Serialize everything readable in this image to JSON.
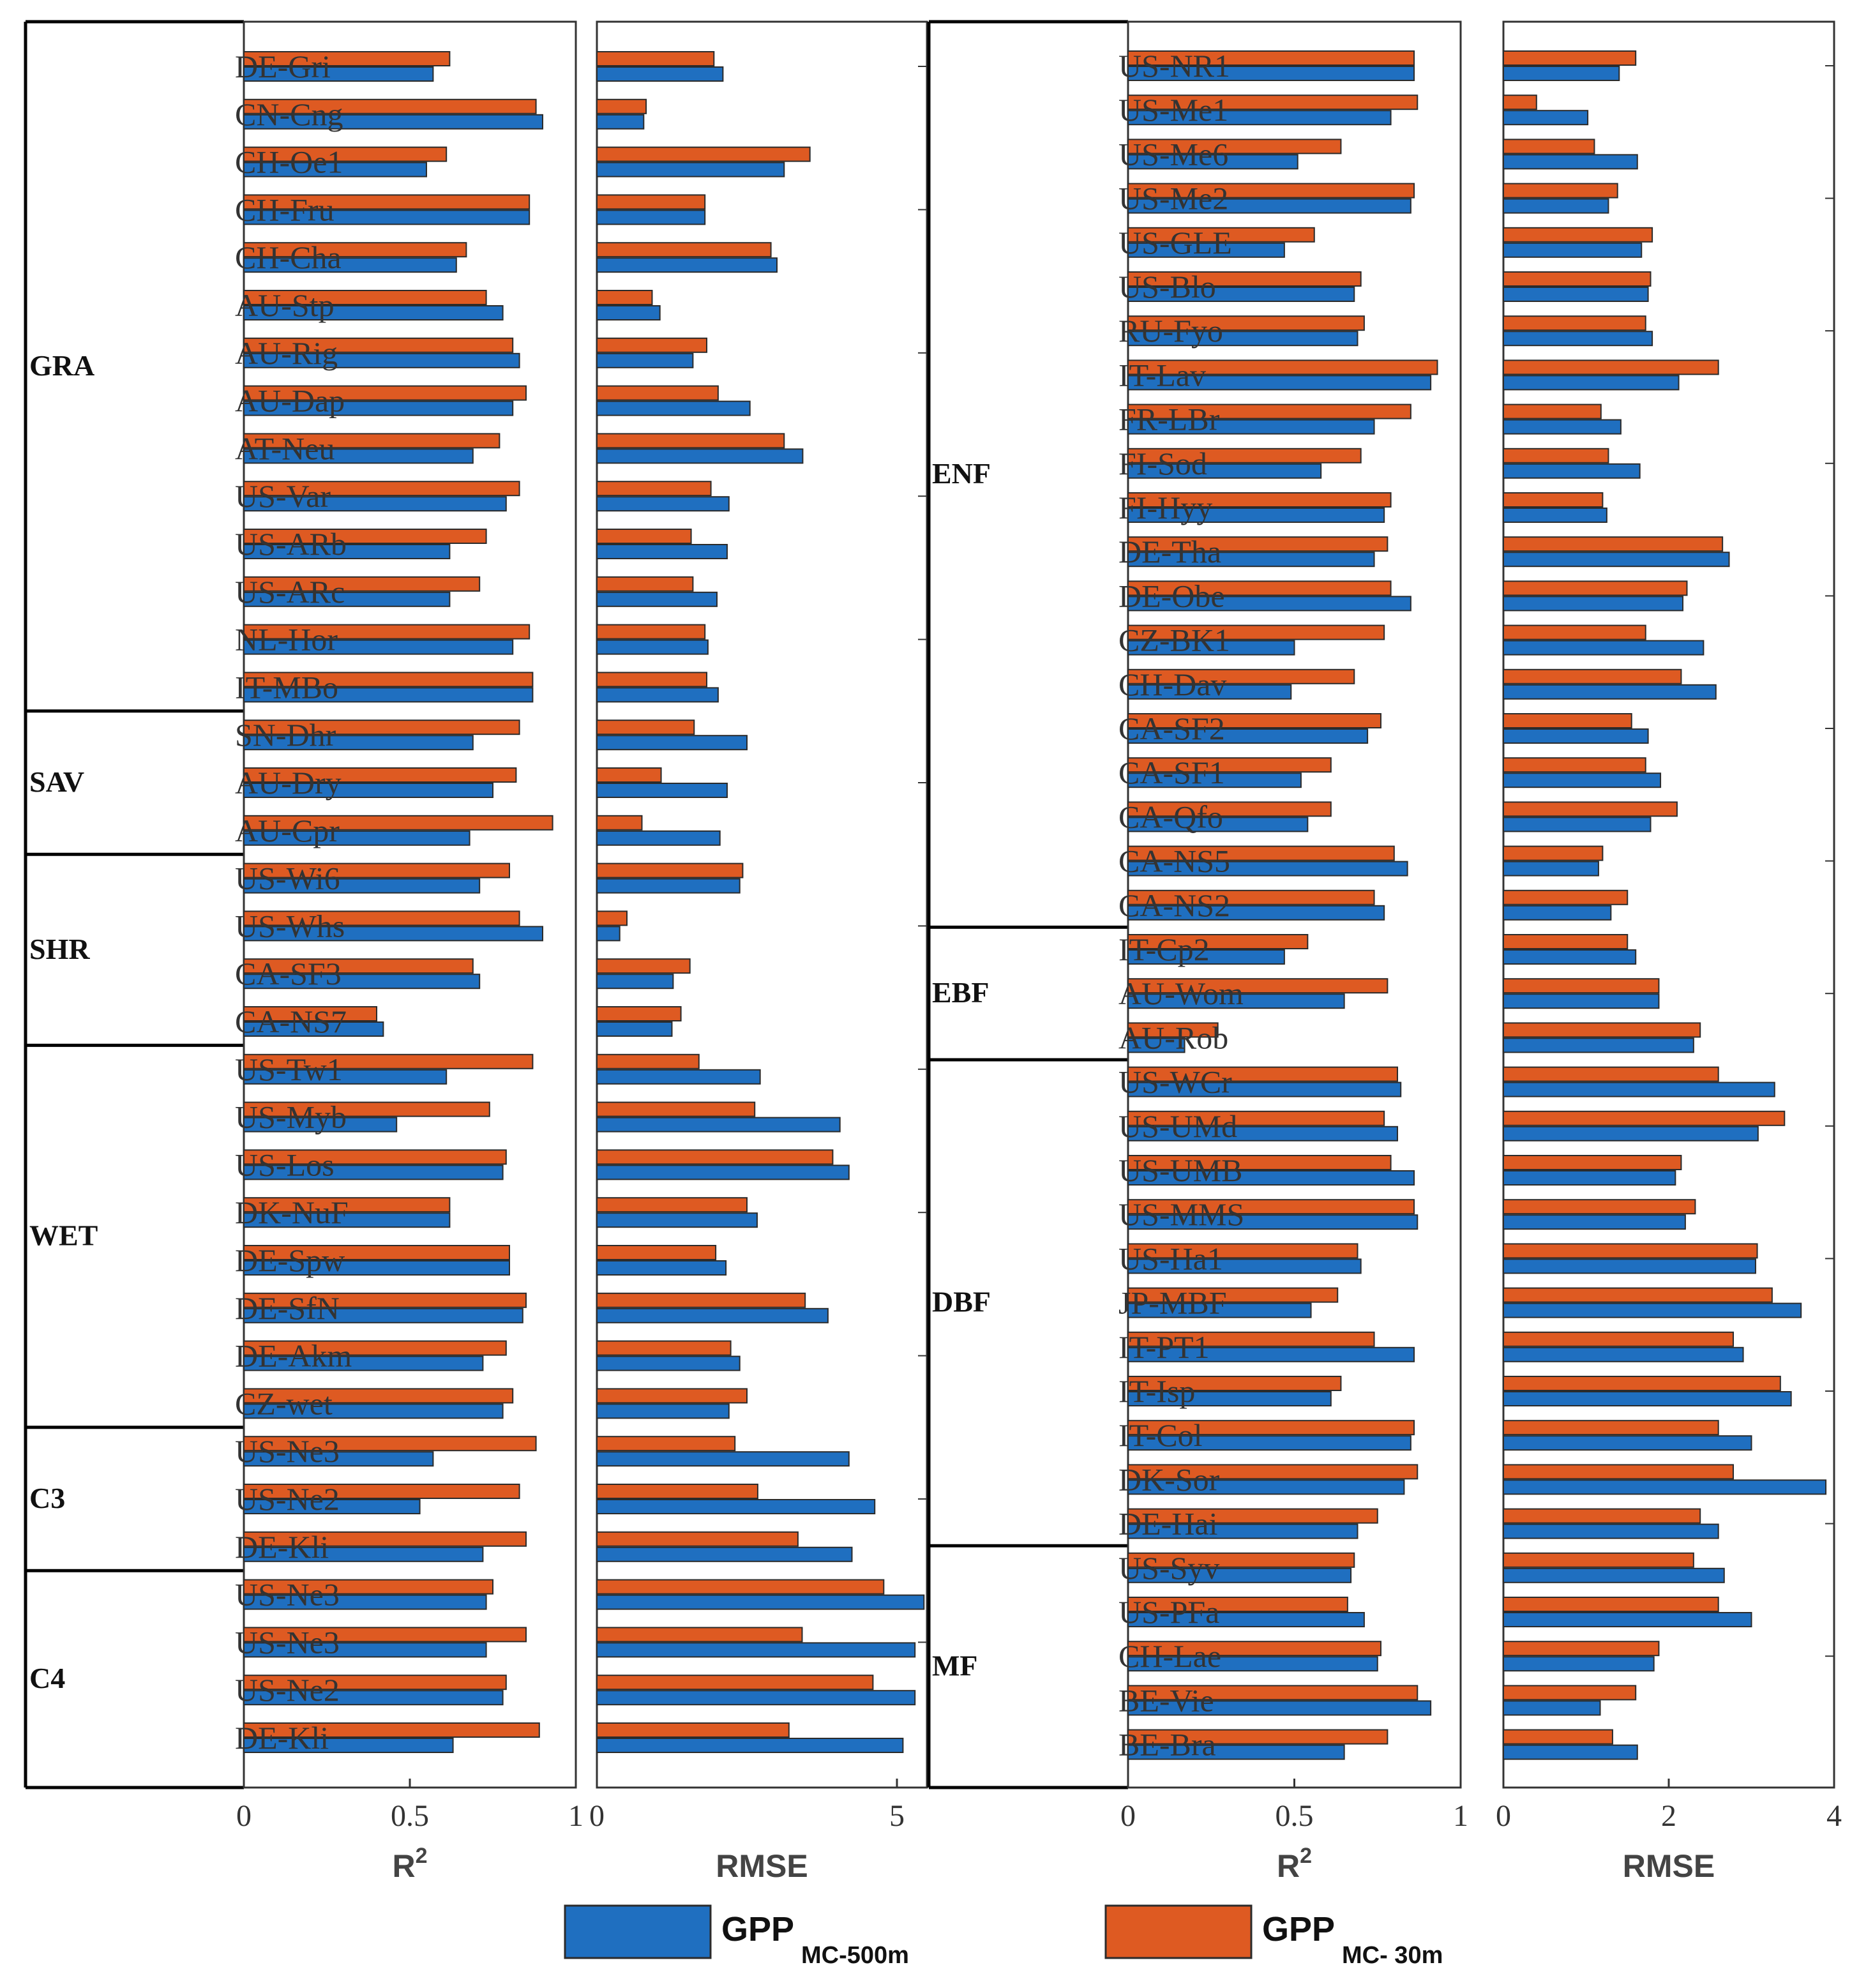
{
  "chart_data": {
    "type": "bar",
    "orientation": "horizontal",
    "colors": {
      "GPP_MC-500m": "#1f6fc0",
      "GPP_MC-30m": "#de5a22",
      "edge": "#2b2b2b"
    },
    "legend": [
      {
        "key": "GPP_MC-500m",
        "main": "GPP",
        "sub": "MC-500m"
      },
      {
        "key": "GPP_MC-30m",
        "main": "GPP",
        "sub": "MC- 30m"
      }
    ],
    "panels": [
      {
        "id": "left",
        "groups": [
          {
            "name": "GRA",
            "count": 14
          },
          {
            "name": "SAV",
            "count": 3
          },
          {
            "name": "SHR",
            "count": 4
          },
          {
            "name": "WET",
            "count": 8
          },
          {
            "name": "C3",
            "count": 3
          },
          {
            "name": "C4",
            "count": 4
          }
        ],
        "sites": [
          {
            "name": "DE-Gri",
            "r2_500": 0.57,
            "r2_30": 0.62,
            "rmse_500": 2.1,
            "rmse_30": 1.95
          },
          {
            "name": "CN-Cng",
            "r2_500": 0.9,
            "r2_30": 0.88,
            "rmse_500": 0.78,
            "rmse_30": 0.82
          },
          {
            "name": "CH-Oe1",
            "r2_500": 0.55,
            "r2_30": 0.61,
            "rmse_500": 3.12,
            "rmse_30": 3.55
          },
          {
            "name": "CH-Fru",
            "r2_500": 0.86,
            "r2_30": 0.86,
            "rmse_500": 1.8,
            "rmse_30": 1.8
          },
          {
            "name": "CH-Cha",
            "r2_500": 0.64,
            "r2_30": 0.67,
            "rmse_500": 3.0,
            "rmse_30": 2.9
          },
          {
            "name": "AU-Stp",
            "r2_500": 0.78,
            "r2_30": 0.73,
            "rmse_500": 1.05,
            "rmse_30": 0.92
          },
          {
            "name": "AU-Rig",
            "r2_500": 0.83,
            "r2_30": 0.81,
            "rmse_500": 1.6,
            "rmse_30": 1.83
          },
          {
            "name": "AU-Dap",
            "r2_500": 0.81,
            "r2_30": 0.85,
            "rmse_500": 2.55,
            "rmse_30": 2.02
          },
          {
            "name": "AT-Neu",
            "r2_500": 0.69,
            "r2_30": 0.77,
            "rmse_500": 3.43,
            "rmse_30": 3.12
          },
          {
            "name": "US-Var",
            "r2_500": 0.79,
            "r2_30": 0.83,
            "rmse_500": 2.2,
            "rmse_30": 1.9
          },
          {
            "name": "US-ARb",
            "r2_500": 0.62,
            "r2_30": 0.73,
            "rmse_500": 2.17,
            "rmse_30": 1.57
          },
          {
            "name": "US-ARc",
            "r2_500": 0.62,
            "r2_30": 0.71,
            "rmse_500": 2.0,
            "rmse_30": 1.6
          },
          {
            "name": "NL-Hor",
            "r2_500": 0.81,
            "r2_30": 0.86,
            "rmse_500": 1.85,
            "rmse_30": 1.8
          },
          {
            "name": "IT-MBo",
            "r2_500": 0.87,
            "r2_30": 0.87,
            "rmse_500": 2.02,
            "rmse_30": 1.83
          },
          {
            "name": "SN-Dhr",
            "r2_500": 0.69,
            "r2_30": 0.83,
            "rmse_500": 2.5,
            "rmse_30": 1.62
          },
          {
            "name": "AU-Dry",
            "r2_500": 0.75,
            "r2_30": 0.82,
            "rmse_500": 2.17,
            "rmse_30": 1.07
          },
          {
            "name": "AU-Cpr",
            "r2_500": 0.68,
            "r2_30": 0.93,
            "rmse_500": 2.05,
            "rmse_30": 0.75
          },
          {
            "name": "US-Wi6",
            "r2_500": 0.71,
            "r2_30": 0.8,
            "rmse_500": 2.38,
            "rmse_30": 2.43
          },
          {
            "name": "US-Whs",
            "r2_500": 0.9,
            "r2_30": 0.83,
            "rmse_500": 0.38,
            "rmse_30": 0.5
          },
          {
            "name": "CA-SF3",
            "r2_500": 0.71,
            "r2_30": 0.69,
            "rmse_500": 1.27,
            "rmse_30": 1.55
          },
          {
            "name": "CA-NS7",
            "r2_500": 0.42,
            "r2_30": 0.4,
            "rmse_500": 1.25,
            "rmse_30": 1.4
          },
          {
            "name": "US-Tw1",
            "r2_500": 0.61,
            "r2_30": 0.87,
            "rmse_500": 2.72,
            "rmse_30": 1.7
          },
          {
            "name": "US-Myb",
            "r2_500": 0.46,
            "r2_30": 0.74,
            "rmse_500": 4.05,
            "rmse_30": 2.63
          },
          {
            "name": "US-Los",
            "r2_500": 0.78,
            "r2_30": 0.79,
            "rmse_500": 4.2,
            "rmse_30": 3.93
          },
          {
            "name": "DK-NuF",
            "r2_500": 0.62,
            "r2_30": 0.62,
            "rmse_500": 2.67,
            "rmse_30": 2.5
          },
          {
            "name": "DE-Spw",
            "r2_500": 0.8,
            "r2_30": 0.8,
            "rmse_500": 2.15,
            "rmse_30": 1.98
          },
          {
            "name": "DE-SfN",
            "r2_500": 0.84,
            "r2_30": 0.85,
            "rmse_500": 3.85,
            "rmse_30": 3.47
          },
          {
            "name": "DE-Akm",
            "r2_500": 0.72,
            "r2_30": 0.79,
            "rmse_500": 2.38,
            "rmse_30": 2.23
          },
          {
            "name": "CZ-wet",
            "r2_500": 0.78,
            "r2_30": 0.81,
            "rmse_500": 2.2,
            "rmse_30": 2.5
          },
          {
            "name": "US-Ne3",
            "r2_500": 0.57,
            "r2_30": 0.88,
            "rmse_500": 4.2,
            "rmse_30": 2.3
          },
          {
            "name": "US-Ne2",
            "r2_500": 0.53,
            "r2_30": 0.83,
            "rmse_500": 4.63,
            "rmse_30": 2.68
          },
          {
            "name": "DE-Kli",
            "r2_500": 0.72,
            "r2_30": 0.85,
            "rmse_500": 4.25,
            "rmse_30": 3.35
          },
          {
            "name": "US-Ne3",
            "r2_500": 0.73,
            "r2_30": 0.75,
            "rmse_500": 5.45,
            "rmse_30": 4.78
          },
          {
            "name": "US-Ne3",
            "r2_500": 0.73,
            "r2_30": 0.85,
            "rmse_500": 5.3,
            "rmse_30": 3.42
          },
          {
            "name": "US-Ne2",
            "r2_500": 0.78,
            "r2_30": 0.79,
            "rmse_500": 5.3,
            "rmse_30": 4.6
          },
          {
            "name": "DE-Kli",
            "r2_500": 0.63,
            "r2_30": 0.89,
            "rmse_500": 5.1,
            "rmse_30": 3.2
          }
        ]
      },
      {
        "id": "right",
        "groups": [
          {
            "name": "ENF",
            "count": 20
          },
          {
            "name": "EBF",
            "count": 3
          },
          {
            "name": "DBF",
            "count": 11
          },
          {
            "name": "MF",
            "count": 5
          }
        ],
        "sites": [
          {
            "name": "US-NR1",
            "r2_500": 0.86,
            "r2_30": 0.86,
            "rmse_500": 1.4,
            "rmse_30": 1.6
          },
          {
            "name": "US-Me1",
            "r2_500": 0.79,
            "r2_30": 0.87,
            "rmse_500": 1.02,
            "rmse_30": 0.4
          },
          {
            "name": "US-Me6",
            "r2_500": 0.51,
            "r2_30": 0.64,
            "rmse_500": 1.62,
            "rmse_30": 1.1
          },
          {
            "name": "US-Me2",
            "r2_500": 0.85,
            "r2_30": 0.86,
            "rmse_500": 1.27,
            "rmse_30": 1.38
          },
          {
            "name": "US-GLE",
            "r2_500": 0.47,
            "r2_30": 0.56,
            "rmse_500": 1.67,
            "rmse_30": 1.8
          },
          {
            "name": "US-Blo",
            "r2_500": 0.68,
            "r2_30": 0.7,
            "rmse_500": 1.75,
            "rmse_30": 1.78
          },
          {
            "name": "RU-Fyo",
            "r2_500": 0.69,
            "r2_30": 0.71,
            "rmse_500": 1.8,
            "rmse_30": 1.72
          },
          {
            "name": "IT-Lav",
            "r2_500": 0.91,
            "r2_30": 0.93,
            "rmse_500": 2.12,
            "rmse_30": 2.6
          },
          {
            "name": "FR-LBr",
            "r2_500": 0.74,
            "r2_30": 0.85,
            "rmse_500": 1.42,
            "rmse_30": 1.18
          },
          {
            "name": "FI-Sod",
            "r2_500": 0.58,
            "r2_30": 0.7,
            "rmse_500": 1.65,
            "rmse_30": 1.27
          },
          {
            "name": "FI-Hyy",
            "r2_500": 0.77,
            "r2_30": 0.79,
            "rmse_500": 1.25,
            "rmse_30": 1.2
          },
          {
            "name": "DE-Tha",
            "r2_500": 0.74,
            "r2_30": 0.78,
            "rmse_500": 2.73,
            "rmse_30": 2.65
          },
          {
            "name": "DE-Obe",
            "r2_500": 0.85,
            "r2_30": 0.79,
            "rmse_500": 2.17,
            "rmse_30": 2.22
          },
          {
            "name": "CZ-BK1",
            "r2_500": 0.5,
            "r2_30": 0.77,
            "rmse_500": 2.42,
            "rmse_30": 1.72
          },
          {
            "name": "CH-Dav",
            "r2_500": 0.49,
            "r2_30": 0.68,
            "rmse_500": 2.57,
            "rmse_30": 2.15
          },
          {
            "name": "CA-SF2",
            "r2_500": 0.72,
            "r2_30": 0.76,
            "rmse_500": 1.75,
            "rmse_30": 1.55
          },
          {
            "name": "CA-SF1",
            "r2_500": 0.52,
            "r2_30": 0.61,
            "rmse_500": 1.9,
            "rmse_30": 1.72
          },
          {
            "name": "CA-Qfo",
            "r2_500": 0.54,
            "r2_30": 0.61,
            "rmse_500": 1.78,
            "rmse_30": 2.1
          },
          {
            "name": "CA-NS5",
            "r2_500": 0.84,
            "r2_30": 0.8,
            "rmse_500": 1.15,
            "rmse_30": 1.2
          },
          {
            "name": "CA-NS2",
            "r2_500": 0.77,
            "r2_30": 0.74,
            "rmse_500": 1.3,
            "rmse_30": 1.5
          },
          {
            "name": "IT-Cp2",
            "r2_500": 0.47,
            "r2_30": 0.54,
            "rmse_500": 1.6,
            "rmse_30": 1.5
          },
          {
            "name": "AU-Wom",
            "r2_500": 0.65,
            "r2_30": 0.78,
            "rmse_500": 1.88,
            "rmse_30": 1.88
          },
          {
            "name": "AU-Rob",
            "r2_500": 0.17,
            "r2_30": 0.27,
            "rmse_500": 2.3,
            "rmse_30": 2.38
          },
          {
            "name": "US-WCr",
            "r2_500": 0.82,
            "r2_30": 0.81,
            "rmse_500": 3.28,
            "rmse_30": 2.6
          },
          {
            "name": "US-UMd",
            "r2_500": 0.81,
            "r2_30": 0.77,
            "rmse_500": 3.08,
            "rmse_30": 3.4
          },
          {
            "name": "US-UMB",
            "r2_500": 0.86,
            "r2_30": 0.79,
            "rmse_500": 2.08,
            "rmse_30": 2.15
          },
          {
            "name": "US-MMS",
            "r2_500": 0.87,
            "r2_30": 0.86,
            "rmse_500": 2.2,
            "rmse_30": 2.32
          },
          {
            "name": "US-Ha1",
            "r2_500": 0.7,
            "r2_30": 0.69,
            "rmse_500": 3.05,
            "rmse_30": 3.07
          },
          {
            "name": "JP-MBF",
            "r2_500": 0.55,
            "r2_30": 0.63,
            "rmse_500": 3.6,
            "rmse_30": 3.25
          },
          {
            "name": "IT-PT1",
            "r2_500": 0.86,
            "r2_30": 0.74,
            "rmse_500": 2.9,
            "rmse_30": 2.78
          },
          {
            "name": "IT-Isp",
            "r2_500": 0.61,
            "r2_30": 0.64,
            "rmse_500": 3.48,
            "rmse_30": 3.35
          },
          {
            "name": "IT-Col",
            "r2_500": 0.85,
            "r2_30": 0.86,
            "rmse_500": 3.0,
            "rmse_30": 2.6
          },
          {
            "name": "DK-Sor",
            "r2_500": 0.83,
            "r2_30": 0.87,
            "rmse_500": 3.9,
            "rmse_30": 2.78
          },
          {
            "name": "DE-Hai",
            "r2_500": 0.69,
            "r2_30": 0.75,
            "rmse_500": 2.6,
            "rmse_30": 2.38
          },
          {
            "name": "US-Syv",
            "r2_500": 0.67,
            "r2_30": 0.68,
            "rmse_500": 2.67,
            "rmse_30": 2.3
          },
          {
            "name": "US-PFa",
            "r2_500": 0.71,
            "r2_30": 0.66,
            "rmse_500": 3.0,
            "rmse_30": 2.6
          },
          {
            "name": "CH-Lae",
            "r2_500": 0.75,
            "r2_30": 0.76,
            "rmse_500": 1.82,
            "rmse_30": 1.88
          },
          {
            "name": "BE-Vie",
            "r2_500": 0.91,
            "r2_30": 0.87,
            "rmse_500": 1.17,
            "rmse_30": 1.6
          },
          {
            "name": "BE-Bra",
            "r2_500": 0.65,
            "r2_30": 0.78,
            "rmse_500": 1.62,
            "rmse_30": 1.32
          }
        ]
      }
    ],
    "axes": {
      "left_r2": {
        "xlim": [
          0,
          1
        ],
        "ticks": [
          "0",
          "0.5",
          "1"
        ],
        "xlabel": "R",
        "xlabel_sup": "2"
      },
      "left_rmse": {
        "xlim": [
          0,
          5.5
        ],
        "ticks": [
          "0",
          "5"
        ],
        "xlabel": "RMSE"
      },
      "right_r2": {
        "xlim": [
          0,
          1
        ],
        "ticks": [
          "0",
          "0.5",
          "1"
        ],
        "xlabel": "R",
        "xlabel_sup": "2"
      },
      "right_rmse": {
        "xlim": [
          0,
          4
        ],
        "ticks": [
          "0",
          "2",
          "4"
        ],
        "xlabel": "RMSE"
      }
    }
  }
}
